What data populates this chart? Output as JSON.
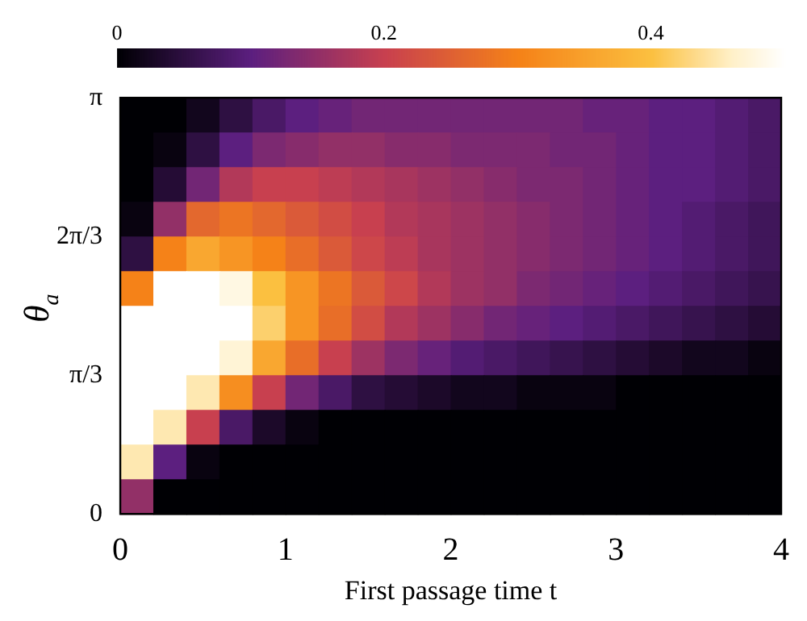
{
  "chart_data": {
    "type": "heatmap",
    "xlabel": "First passage time t",
    "ylabel": "θ$_{a}$",
    "xlim": [
      0,
      4
    ],
    "xticks": [
      0,
      1,
      2,
      3,
      4
    ],
    "ylim": [
      0,
      3.1416
    ],
    "yticks": [
      0,
      {
        "value": 1.0472,
        "label": "π/3"
      },
      {
        "value": 2.0944,
        "label": "2π/3"
      },
      {
        "value": 3.1416,
        "label": "π"
      }
    ],
    "clim": [
      0,
      0.5
    ],
    "cticks": [
      0,
      0.2,
      0.4
    ],
    "cells": [
      [
        0,
        0,
        0.02,
        0.05,
        0.08,
        0.1,
        0.11,
        0.12,
        0.12,
        0.12,
        0.12,
        0.12,
        0.12,
        0.12,
        0.11,
        0.11,
        0.1,
        0.1,
        0.09,
        0.08
      ],
      [
        0,
        0.01,
        0.05,
        0.1,
        0.13,
        0.14,
        0.15,
        0.15,
        0.14,
        0.14,
        0.13,
        0.13,
        0.13,
        0.12,
        0.12,
        0.11,
        0.1,
        0.1,
        0.09,
        0.08
      ],
      [
        0,
        0.04,
        0.12,
        0.18,
        0.2,
        0.2,
        0.19,
        0.18,
        0.17,
        0.16,
        0.15,
        0.14,
        0.13,
        0.13,
        0.12,
        0.11,
        0.1,
        0.1,
        0.09,
        0.08
      ],
      [
        0.01,
        0.15,
        0.26,
        0.28,
        0.26,
        0.24,
        0.22,
        0.2,
        0.18,
        0.17,
        0.16,
        0.15,
        0.14,
        0.13,
        0.12,
        0.11,
        0.1,
        0.09,
        0.08,
        0.07
      ],
      [
        0.05,
        0.3,
        0.36,
        0.33,
        0.3,
        0.27,
        0.24,
        0.21,
        0.19,
        0.17,
        0.16,
        0.15,
        0.14,
        0.13,
        0.12,
        0.11,
        0.1,
        0.09,
        0.08,
        0.07
      ],
      [
        0.3,
        0.5,
        0.5,
        0.48,
        0.4,
        0.33,
        0.28,
        0.24,
        0.21,
        0.18,
        0.16,
        0.15,
        0.13,
        0.12,
        0.11,
        0.1,
        0.09,
        0.08,
        0.07,
        0.06
      ],
      [
        0.5,
        0.5,
        0.5,
        0.5,
        0.42,
        0.33,
        0.27,
        0.22,
        0.18,
        0.16,
        0.14,
        0.12,
        0.11,
        0.1,
        0.09,
        0.08,
        0.07,
        0.06,
        0.05,
        0.04
      ],
      [
        0.5,
        0.5,
        0.5,
        0.47,
        0.36,
        0.27,
        0.2,
        0.16,
        0.13,
        0.11,
        0.09,
        0.08,
        0.07,
        0.06,
        0.05,
        0.04,
        0.03,
        0.02,
        0.02,
        0.01
      ],
      [
        0.5,
        0.5,
        0.45,
        0.32,
        0.2,
        0.12,
        0.08,
        0.05,
        0.04,
        0.03,
        0.02,
        0.02,
        0.01,
        0.01,
        0.01,
        0,
        0,
        0,
        0,
        0
      ],
      [
        0.5,
        0.45,
        0.2,
        0.08,
        0.03,
        0.01,
        0,
        0,
        0,
        0,
        0,
        0,
        0,
        0,
        0,
        0,
        0,
        0,
        0,
        0
      ],
      [
        0.45,
        0.1,
        0.01,
        0,
        0,
        0,
        0,
        0,
        0,
        0,
        0,
        0,
        0,
        0,
        0,
        0,
        0,
        0,
        0,
        0
      ],
      [
        0.15,
        0,
        0,
        0,
        0,
        0,
        0,
        0,
        0,
        0,
        0,
        0,
        0,
        0,
        0,
        0,
        0,
        0,
        0,
        0
      ]
    ]
  }
}
